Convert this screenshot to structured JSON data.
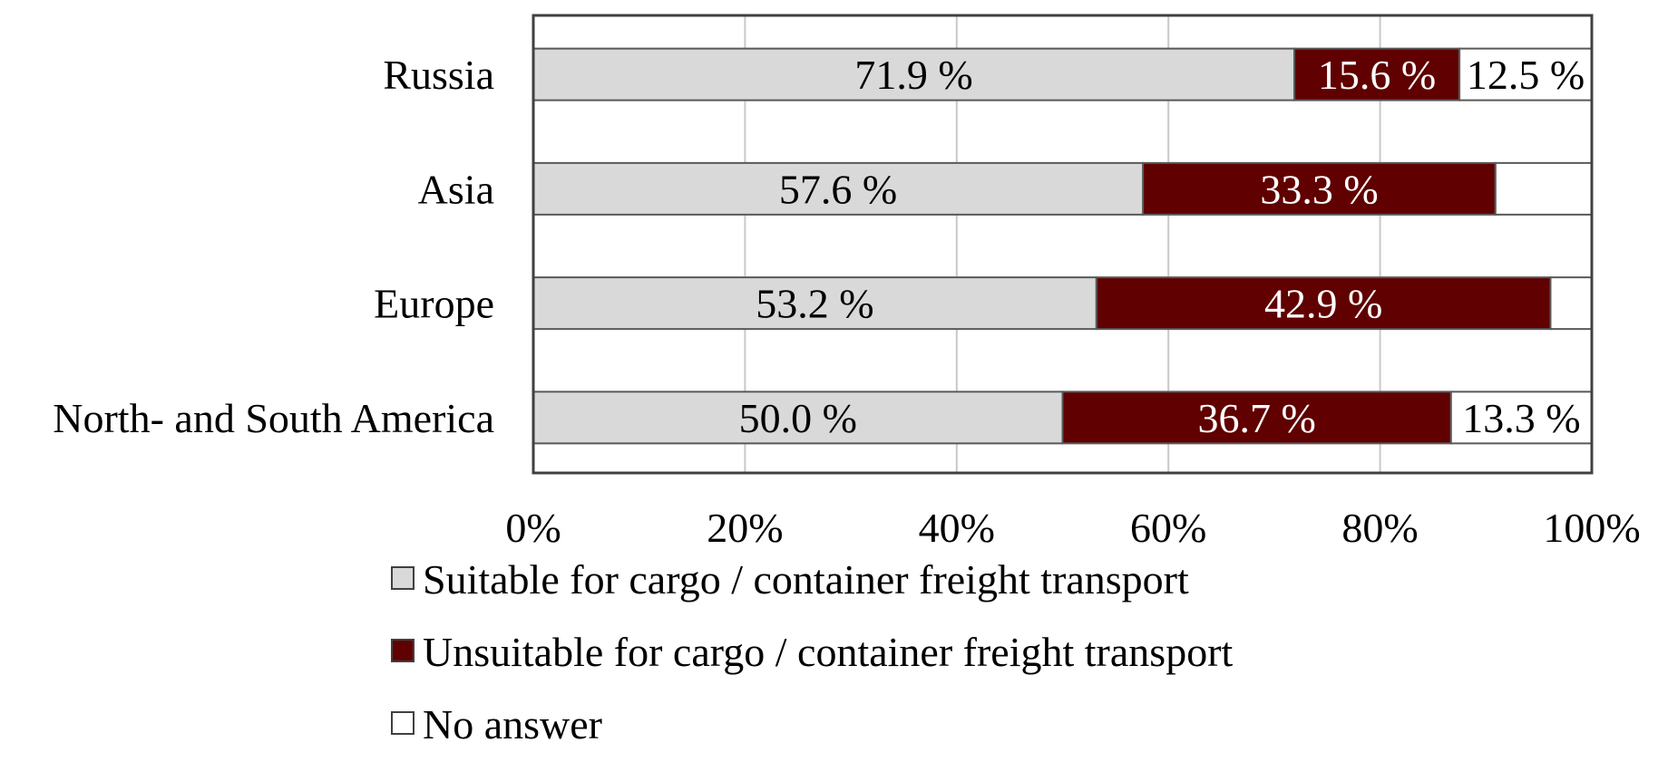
{
  "chart_data": {
    "type": "bar",
    "orientation": "horizontal",
    "stacked": true,
    "categories": [
      "Russia",
      "Asia",
      "Europe",
      "North- and South America"
    ],
    "series": [
      {
        "name": "Suitable for cargo / container freight transport",
        "values": [
          71.9,
          57.6,
          53.2,
          50.0
        ],
        "labels": [
          "71.9 %",
          "57.6 %",
          "53.2 %",
          "50.0 %"
        ],
        "color": "#d9d9d9",
        "label_color": "#000000"
      },
      {
        "name": "Unsuitable for cargo / container freight transport",
        "values": [
          15.6,
          33.3,
          42.9,
          36.7
        ],
        "labels": [
          "15.6 %",
          "33.3 %",
          "42.9 %",
          "36.7 %"
        ],
        "color": "#600000",
        "label_color": "#ffffff"
      },
      {
        "name": "No answer",
        "values": [
          12.5,
          9.1,
          3.9,
          13.3
        ],
        "labels": [
          "12.5 %",
          "",
          "",
          "13.3 %"
        ],
        "color": "#ffffff",
        "label_color": "#000000"
      }
    ],
    "xlim": [
      0,
      100
    ],
    "xticks": [
      "0%",
      "20%",
      "40%",
      "60%",
      "80%",
      "100%"
    ],
    "grid": true,
    "legend_position": "bottom"
  }
}
